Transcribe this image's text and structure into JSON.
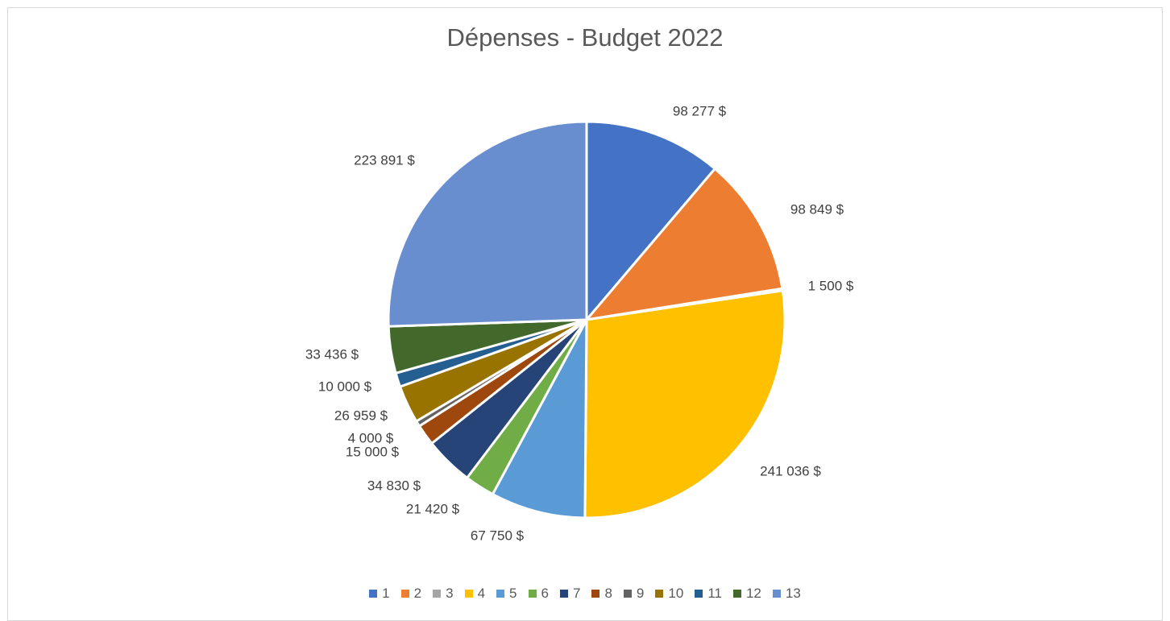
{
  "chart_data": {
    "type": "pie",
    "title": "Dépenses - Budget 2022",
    "legend_position": "bottom",
    "categories": [
      "1",
      "2",
      "3",
      "4",
      "5",
      "6",
      "7",
      "8",
      "9",
      "10",
      "11",
      "12",
      "13"
    ],
    "values": [
      98277,
      98849,
      1500,
      241036,
      67750,
      21420,
      34830,
      15000,
      4000,
      26959,
      10000,
      33436,
      223891
    ],
    "labels": [
      "98 277 $",
      "98 849 $",
      "1 500 $",
      "241 036 $",
      "67 750 $",
      "21 420 $",
      "34 830 $",
      "15 000 $",
      "4 000 $",
      "26 959 $",
      "10 000 $",
      "33 436 $",
      "223 891 $"
    ],
    "colors": [
      "#4472C4",
      "#ED7D31",
      "#A5A5A5",
      "#FFC000",
      "#5B9BD5",
      "#70AD47",
      "#264478",
      "#9E480E",
      "#636363",
      "#997300",
      "#255E91",
      "#43682B",
      "#698ED0"
    ]
  }
}
